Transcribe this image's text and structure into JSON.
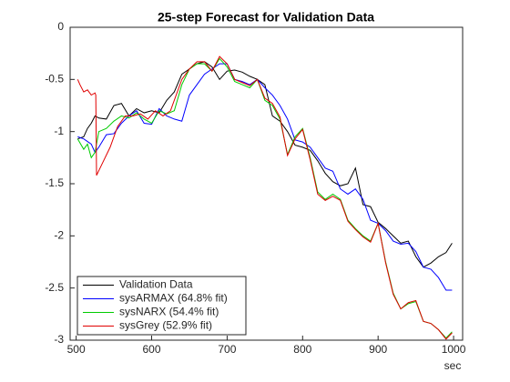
{
  "chart_data": {
    "type": "line",
    "title": "25-step Forecast for Validation Data",
    "x_label": "sec",
    "xlim": [
      492,
      1012
    ],
    "ylim": [
      -3,
      0
    ],
    "xticks": [
      500,
      600,
      700,
      800,
      900,
      1000
    ],
    "yticks": [
      0,
      -0.5,
      -1,
      -1.5,
      -2,
      -2.5,
      -3
    ],
    "legend": "lower left",
    "series": [
      {
        "name": "Validation Data",
        "color": "#000000",
        "x": [
          502,
          510,
          515,
          520,
          525,
          530,
          540,
          550,
          560,
          570,
          580,
          590,
          600,
          610,
          620,
          630,
          640,
          650,
          660,
          670,
          680,
          690,
          700,
          710,
          720,
          730,
          740,
          750,
          760,
          770,
          780,
          790,
          800,
          810,
          820,
          830,
          840,
          850,
          860,
          870,
          880,
          890,
          900,
          910,
          920,
          930,
          940,
          950,
          960,
          970,
          980,
          990,
          998
        ],
        "values": [
          -1.07,
          -1.05,
          -0.97,
          -0.92,
          -0.85,
          -0.87,
          -0.88,
          -0.75,
          -0.73,
          -0.85,
          -0.78,
          -0.82,
          -0.8,
          -0.82,
          -0.7,
          -0.62,
          -0.45,
          -0.4,
          -0.35,
          -0.33,
          -0.38,
          -0.5,
          -0.42,
          -0.41,
          -0.43,
          -0.47,
          -0.5,
          -0.55,
          -0.85,
          -0.9,
          -1.0,
          -1.13,
          -1.15,
          -1.18,
          -1.28,
          -1.4,
          -1.48,
          -1.52,
          -1.5,
          -1.35,
          -1.7,
          -1.72,
          -1.87,
          -1.93,
          -2.0,
          -2.07,
          -2.05,
          -2.2,
          -2.3,
          -2.26,
          -2.2,
          -2.16,
          -2.07
        ]
      },
      {
        "name": "sysARMAX (64.8% fit)",
        "color": "#0000ff",
        "x": [
          502,
          510,
          520,
          525,
          530,
          540,
          550,
          560,
          570,
          580,
          590,
          600,
          610,
          620,
          630,
          640,
          650,
          660,
          670,
          680,
          690,
          700,
          710,
          720,
          730,
          740,
          750,
          760,
          770,
          780,
          790,
          800,
          810,
          820,
          830,
          840,
          850,
          860,
          870,
          880,
          890,
          900,
          910,
          920,
          930,
          940,
          950,
          960,
          970,
          980,
          990,
          998
        ],
        "values": [
          -1.05,
          -1.07,
          -1.12,
          -1.2,
          -1.15,
          -1.03,
          -1.02,
          -0.92,
          -0.85,
          -0.8,
          -0.92,
          -0.93,
          -0.78,
          -0.85,
          -0.88,
          -0.9,
          -0.65,
          -0.55,
          -0.45,
          -0.4,
          -0.35,
          -0.35,
          -0.5,
          -0.52,
          -0.55,
          -0.5,
          -0.58,
          -0.65,
          -0.75,
          -0.88,
          -1.08,
          -1.1,
          -1.15,
          -1.25,
          -1.35,
          -1.38,
          -1.55,
          -1.6,
          -1.55,
          -1.65,
          -1.85,
          -1.88,
          -1.95,
          -2.05,
          -2.08,
          -2.07,
          -2.15,
          -2.3,
          -2.32,
          -2.4,
          -2.52,
          -2.52
        ]
      },
      {
        "name": "sysNARX (54.4% fit)",
        "color": "#00cc00",
        "x": [
          502,
          510,
          515,
          520,
          525,
          530,
          540,
          550,
          560,
          570,
          580,
          590,
          600,
          610,
          620,
          630,
          640,
          650,
          660,
          670,
          680,
          690,
          700,
          710,
          720,
          730,
          740,
          750,
          760,
          770,
          780,
          790,
          800,
          810,
          820,
          830,
          840,
          850,
          860,
          870,
          880,
          890,
          900,
          910,
          920,
          930,
          940,
          950,
          960,
          970,
          980,
          990,
          998
        ],
        "values": [
          -1.07,
          -1.17,
          -1.12,
          -1.25,
          -1.2,
          -1.0,
          -0.97,
          -0.9,
          -0.85,
          -0.87,
          -0.82,
          -0.88,
          -0.92,
          -0.8,
          -0.83,
          -0.8,
          -0.55,
          -0.4,
          -0.35,
          -0.35,
          -0.42,
          -0.3,
          -0.38,
          -0.52,
          -0.55,
          -0.58,
          -0.5,
          -0.7,
          -0.75,
          -0.88,
          -1.22,
          -1.05,
          -0.97,
          -1.25,
          -1.58,
          -1.65,
          -1.6,
          -1.65,
          -1.85,
          -1.93,
          -2.0,
          -2.05,
          -1.88,
          -2.25,
          -2.55,
          -2.7,
          -2.65,
          -2.63,
          -2.82,
          -2.84,
          -2.9,
          -2.98,
          -2.92
        ]
      },
      {
        "name": "sysGrey (52.9% fit)",
        "color": "#e00000",
        "x": [
          502,
          505,
          510,
          515,
          520,
          525,
          526,
          527,
          535,
          545,
          555,
          565,
          575,
          585,
          595,
          605,
          615,
          625,
          640,
          650,
          660,
          670,
          680,
          690,
          700,
          710,
          720,
          730,
          740,
          750,
          760,
          770,
          780,
          790,
          800,
          810,
          820,
          830,
          840,
          850,
          860,
          870,
          880,
          890,
          900,
          910,
          920,
          930,
          940,
          950,
          960,
          970,
          980,
          990,
          998
        ],
        "values": [
          -0.5,
          -0.55,
          -0.62,
          -0.6,
          -0.65,
          -0.63,
          -0.65,
          -1.42,
          -1.3,
          -1.15,
          -0.95,
          -0.85,
          -0.85,
          -0.83,
          -0.88,
          -0.8,
          -0.85,
          -0.8,
          -0.5,
          -0.4,
          -0.33,
          -0.33,
          -0.42,
          -0.28,
          -0.35,
          -0.5,
          -0.53,
          -0.56,
          -0.5,
          -0.68,
          -0.73,
          -0.86,
          -1.23,
          -1.07,
          -0.98,
          -1.27,
          -1.6,
          -1.66,
          -1.62,
          -1.66,
          -1.86,
          -1.94,
          -2.01,
          -2.06,
          -1.88,
          -2.26,
          -2.56,
          -2.7,
          -2.64,
          -2.62,
          -2.82,
          -2.84,
          -2.9,
          -2.99,
          -2.93
        ]
      }
    ]
  }
}
